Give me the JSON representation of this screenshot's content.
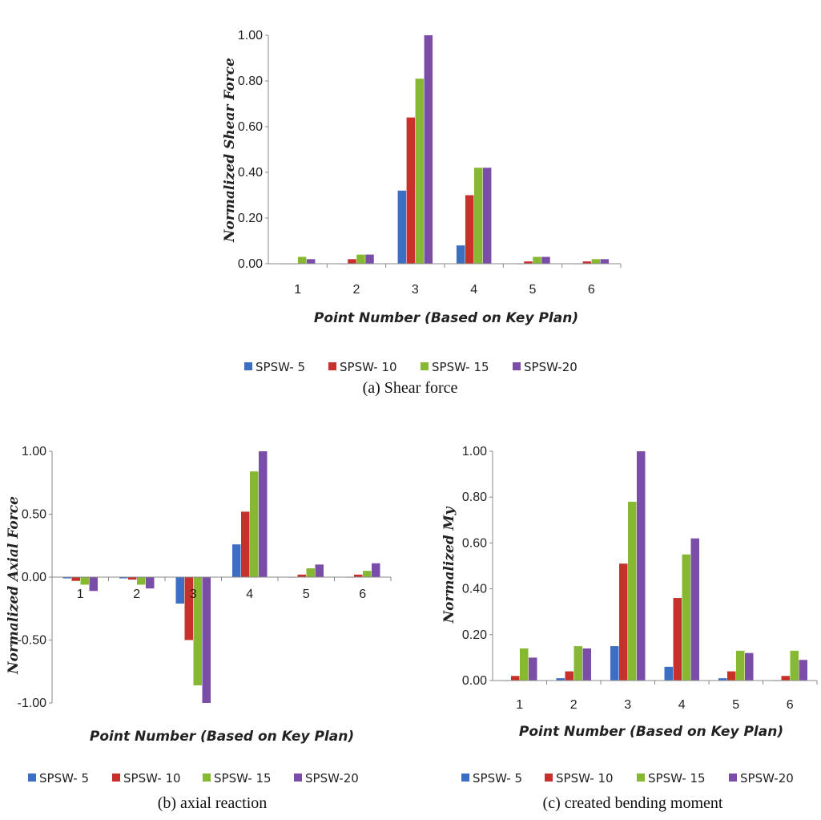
{
  "series_colors": [
    "#3a6fc4",
    "#c8302c",
    "#86b831",
    "#7a4ea8"
  ],
  "chart_data": [
    {
      "type": "bar",
      "categories": [
        "1",
        "2",
        "3",
        "4",
        "5",
        "6"
      ],
      "series": [
        {
          "name": "SPSW- 5",
          "values": [
            0.0,
            0.0,
            0.32,
            0.08,
            0.0,
            0.0
          ]
        },
        {
          "name": "SPSW- 10",
          "values": [
            0.0,
            0.02,
            0.64,
            0.3,
            0.01,
            0.01
          ]
        },
        {
          "name": "SPSW- 15",
          "values": [
            0.03,
            0.04,
            0.81,
            0.42,
            0.03,
            0.02
          ]
        },
        {
          "name": "SPSW-20",
          "values": [
            0.02,
            0.04,
            1.0,
            0.42,
            0.03,
            0.02
          ]
        }
      ],
      "yticks": [
        "0.00",
        "0.20",
        "0.40",
        "0.60",
        "0.80",
        "1.00"
      ],
      "ylim": [
        0,
        1
      ],
      "ylabel": "Normalized Shear Force",
      "xlabel": "Point Number (Based on Key Plan)",
      "caption": "(a) Shear force",
      "legend": "bottom",
      "grid": false
    },
    {
      "type": "bar",
      "categories": [
        "1",
        "2",
        "3",
        "4",
        "5",
        "6"
      ],
      "series": [
        {
          "name": "SPSW- 5",
          "values": [
            -0.01,
            -0.01,
            -0.21,
            0.26,
            0.0,
            0.0
          ]
        },
        {
          "name": "SPSW- 10",
          "values": [
            -0.03,
            -0.02,
            -0.5,
            0.52,
            0.02,
            0.02
          ]
        },
        {
          "name": "SPSW- 15",
          "values": [
            -0.06,
            -0.06,
            -0.86,
            0.84,
            0.07,
            0.05
          ]
        },
        {
          "name": "SPSW-20",
          "values": [
            -0.11,
            -0.09,
            -1.0,
            1.0,
            0.1,
            0.11
          ]
        }
      ],
      "yticks": [
        "-1.00",
        "-0.50",
        "0.00",
        "0.50",
        "1.00"
      ],
      "ylim": [
        -1,
        1
      ],
      "ylabel": "Normalized Axial Force",
      "xlabel": "Point Number (Based on Key Plan)",
      "caption": "(b) axial reaction",
      "legend": "bottom",
      "grid": false
    },
    {
      "type": "bar",
      "categories": [
        "1",
        "2",
        "3",
        "4",
        "5",
        "6"
      ],
      "series": [
        {
          "name": "SPSW- 5",
          "values": [
            0.0,
            0.01,
            0.15,
            0.06,
            0.01,
            0.0
          ]
        },
        {
          "name": "SPSW- 10",
          "values": [
            0.02,
            0.04,
            0.51,
            0.36,
            0.04,
            0.02
          ]
        },
        {
          "name": "SPSW- 15",
          "values": [
            0.14,
            0.15,
            0.78,
            0.55,
            0.13,
            0.13
          ]
        },
        {
          "name": "SPSW-20",
          "values": [
            0.1,
            0.14,
            1.0,
            0.62,
            0.12,
            0.09
          ]
        }
      ],
      "yticks": [
        "0.00",
        "0.20",
        "0.40",
        "0.60",
        "0.80",
        "1.00"
      ],
      "ylim": [
        0,
        1
      ],
      "ylabel": "Normalized My",
      "xlabel": "Point Number (Based on Key Plan)",
      "caption": "(c) created bending moment",
      "legend": "bottom",
      "grid": false
    }
  ]
}
